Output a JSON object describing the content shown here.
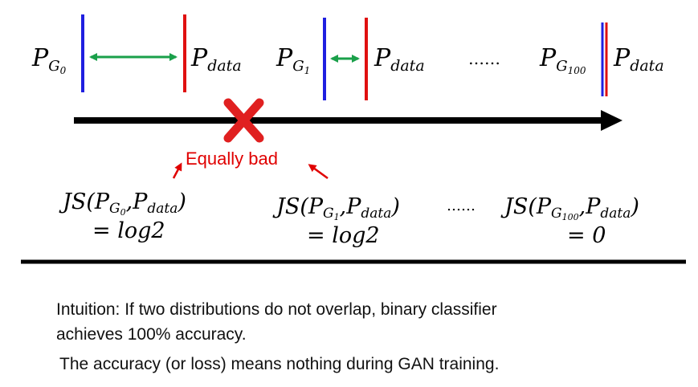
{
  "top_row": {
    "p_g0": {
      "base": "P",
      "sub": "G",
      "subsub": "0"
    },
    "p_data_0": {
      "base": "P",
      "sub": "data"
    },
    "p_g1": {
      "base": "P",
      "sub": "G",
      "subsub": "1"
    },
    "p_data_1": {
      "base": "P",
      "sub": "data"
    },
    "ellipsis": "……",
    "p_g100": {
      "base": "P",
      "sub": "G",
      "subsub": "100"
    },
    "p_data_100": {
      "base": "P",
      "sub": "data"
    }
  },
  "callout": {
    "text": "Equally bad"
  },
  "js_formulas": [
    {
      "lhs_prefix": "JS(",
      "pg_base": "P",
      "pg_sub": "G",
      "pg_subsub": "0",
      "comma": ",",
      "pd_base": "P",
      "pd_sub": "data",
      "close": ")",
      "rhs": "= log2"
    },
    {
      "lhs_prefix": "JS(",
      "pg_base": "P",
      "pg_sub": "G",
      "pg_subsub": "1",
      "comma": ",",
      "pd_base": "P",
      "pd_sub": "data",
      "close": ")",
      "rhs": "= log2"
    },
    {
      "lhs_prefix": "JS(",
      "pg_base": "P",
      "pg_sub": "G",
      "pg_subsub": "100",
      "comma": ",",
      "pd_base": "P",
      "pd_sub": "data",
      "close": ")",
      "rhs": "= 0"
    }
  ],
  "mid_ellipsis": "……",
  "notes": {
    "intuition_line1": "Intuition: If two distributions do not overlap, binary classifier",
    "intuition_line2": "achieves 100% accuracy.",
    "accuracy_note": "The accuracy (or loss) means nothing during GAN training."
  },
  "colors": {
    "generator_line": "#1f1fe0",
    "data_line": "#e01010",
    "distance_arrow": "#1aa04a",
    "cross": "#e02020",
    "callout": "#e00000",
    "axis": "#000000"
  }
}
